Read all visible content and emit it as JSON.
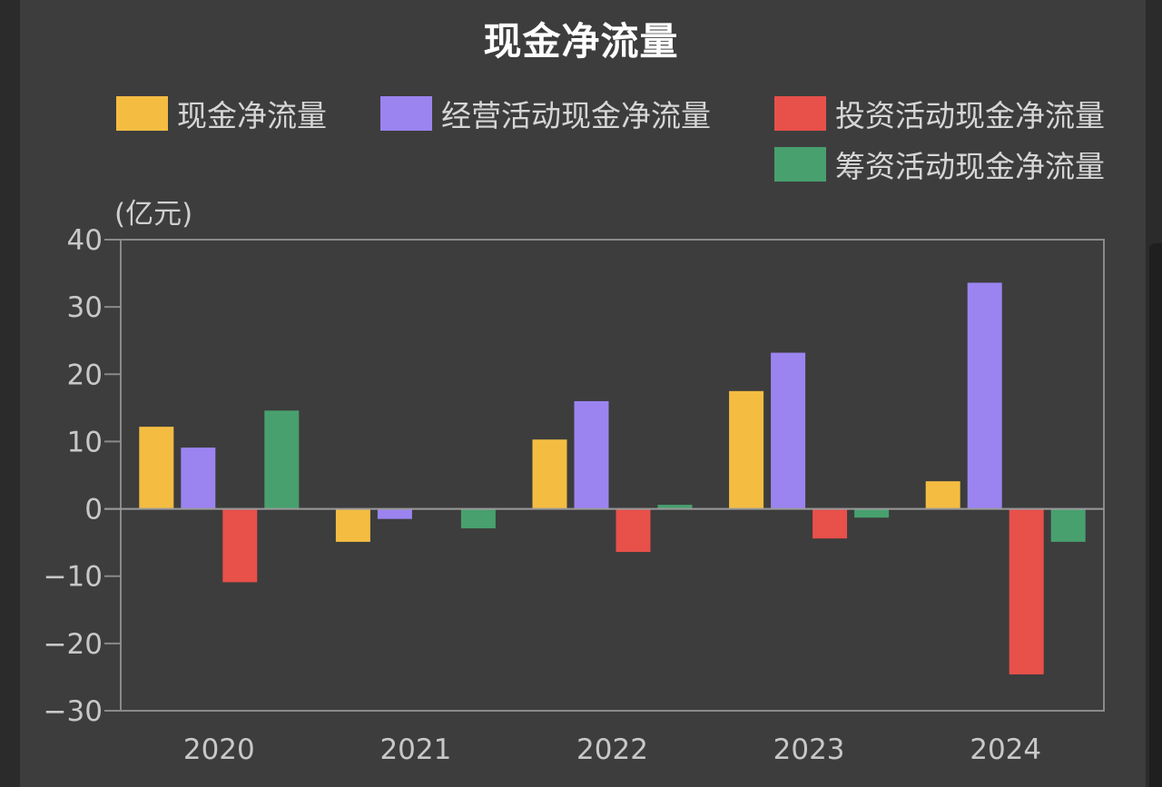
{
  "chart_data": {
    "type": "bar",
    "title": "现金净流量",
    "unit_label": "(亿元)",
    "categories": [
      "2020",
      "2021",
      "2022",
      "2023",
      "2024"
    ],
    "series": [
      {
        "name": "现金净流量",
        "color": "#f4bd42",
        "values": [
          12.2,
          -4.9,
          10.3,
          17.5,
          4.1
        ]
      },
      {
        "name": "经营活动现金净流量",
        "color": "#9b84f0",
        "values": [
          9.1,
          -1.5,
          16.0,
          23.2,
          33.6
        ]
      },
      {
        "name": "投资活动现金净流量",
        "color": "#e8504a",
        "values": [
          -10.9,
          0,
          -6.4,
          -4.4,
          -24.6
        ]
      },
      {
        "name": "筹资活动现金净流量",
        "color": "#48a06e",
        "values": [
          14.6,
          -2.9,
          0.6,
          -1.3,
          -4.9
        ]
      }
    ],
    "y_ticks": [
      "40",
      "30",
      "20",
      "10",
      "0",
      "−10",
      "−20",
      "−30"
    ],
    "ylim": [
      -30,
      40
    ],
    "grid": false,
    "legend_position": "top"
  }
}
